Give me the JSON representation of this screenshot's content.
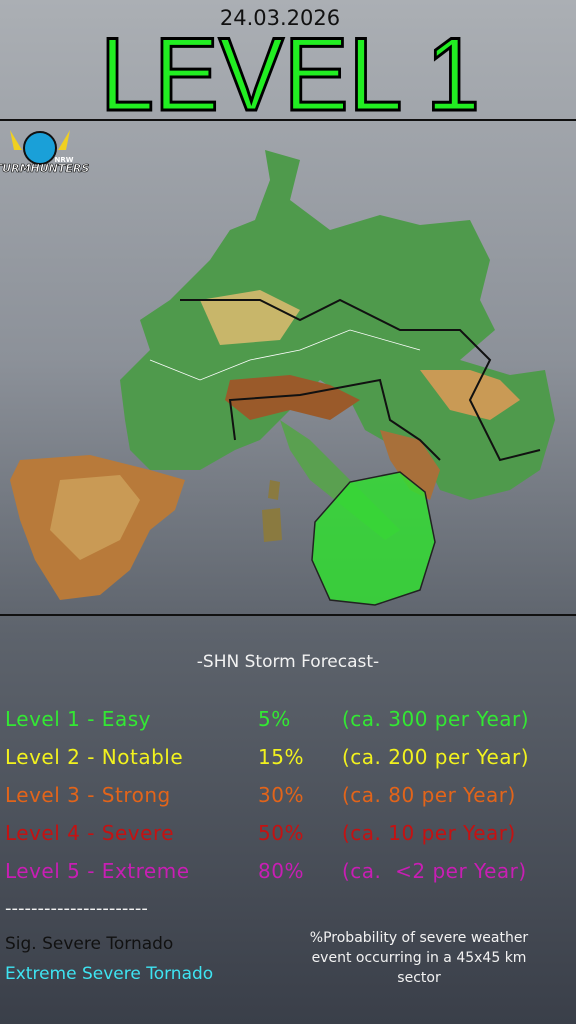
{
  "header": {
    "date": "24.03.2026",
    "level": "LEVEL 1",
    "level_color": "#22ee22"
  },
  "logo": {
    "name": "STURMHUNTERS",
    "region": "NRW"
  },
  "forecast": {
    "title": "-SHN Storm Forecast-",
    "levels": [
      {
        "name": "Level 1 - Easy",
        "probability": "5%",
        "frequency": "(ca. 300 per Year)",
        "color": "#33e833"
      },
      {
        "name": "Level 2 - Notable",
        "probability": "15%",
        "frequency": "(ca. 200 per Year)",
        "color": "#f2f21e"
      },
      {
        "name": "Level 3 - Strong",
        "probability": "30%",
        "frequency": "(ca. 80 per Year)",
        "color": "#e2641a"
      },
      {
        "name": "Level 4 - Severe",
        "probability": "50%",
        "frequency": "(ca. 10 per Year)",
        "color": "#c41212"
      },
      {
        "name": "Level 5 - Extreme",
        "probability": "80%",
        "frequency": "(ca.  <2 per Year)",
        "color": "#c81eb4"
      }
    ]
  },
  "divider": "----------------------",
  "legend": [
    {
      "text": "Sig. Severe Tornado",
      "color": "#111111"
    },
    {
      "text": "Extreme Severe Tornado",
      "color": "#3ee4f2"
    }
  ],
  "note": "%Probability of severe weather event occurring in a 45x45 km sector"
}
